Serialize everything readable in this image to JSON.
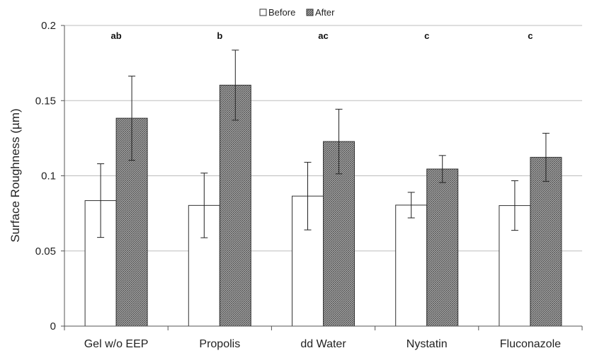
{
  "chart_data": {
    "type": "bar",
    "title": "",
    "xlabel": "",
    "ylabel": "Surface Roughness (µm)",
    "ylim": [
      0,
      0.2
    ],
    "yticks": [
      "0",
      "0.05",
      "0.1",
      "0.15",
      "0.2"
    ],
    "ytick_values": [
      0,
      0.05,
      0.1,
      0.15,
      0.2
    ],
    "grid": true,
    "legend_position": "top-center",
    "categories": [
      "Gel w/o EEP",
      "Propolis",
      "dd Water",
      "Nystatin",
      "Fluconazole"
    ],
    "significance_labels": [
      "ab",
      "b",
      "ac",
      "c",
      "c"
    ],
    "series": [
      {
        "name": "Before",
        "pattern": "none",
        "color": "#ffffff",
        "values": [
          0.0835,
          0.0803,
          0.0865,
          0.0805,
          0.0802
        ],
        "error": [
          0.0245,
          0.0215,
          0.0225,
          0.0085,
          0.0165
        ]
      },
      {
        "name": "After",
        "pattern": "crosshatch",
        "color": "#8a8a8a",
        "values": [
          0.1383,
          0.1603,
          0.1228,
          0.1045,
          0.1123
        ],
        "error": [
          0.028,
          0.0233,
          0.0215,
          0.009,
          0.016
        ]
      }
    ]
  }
}
